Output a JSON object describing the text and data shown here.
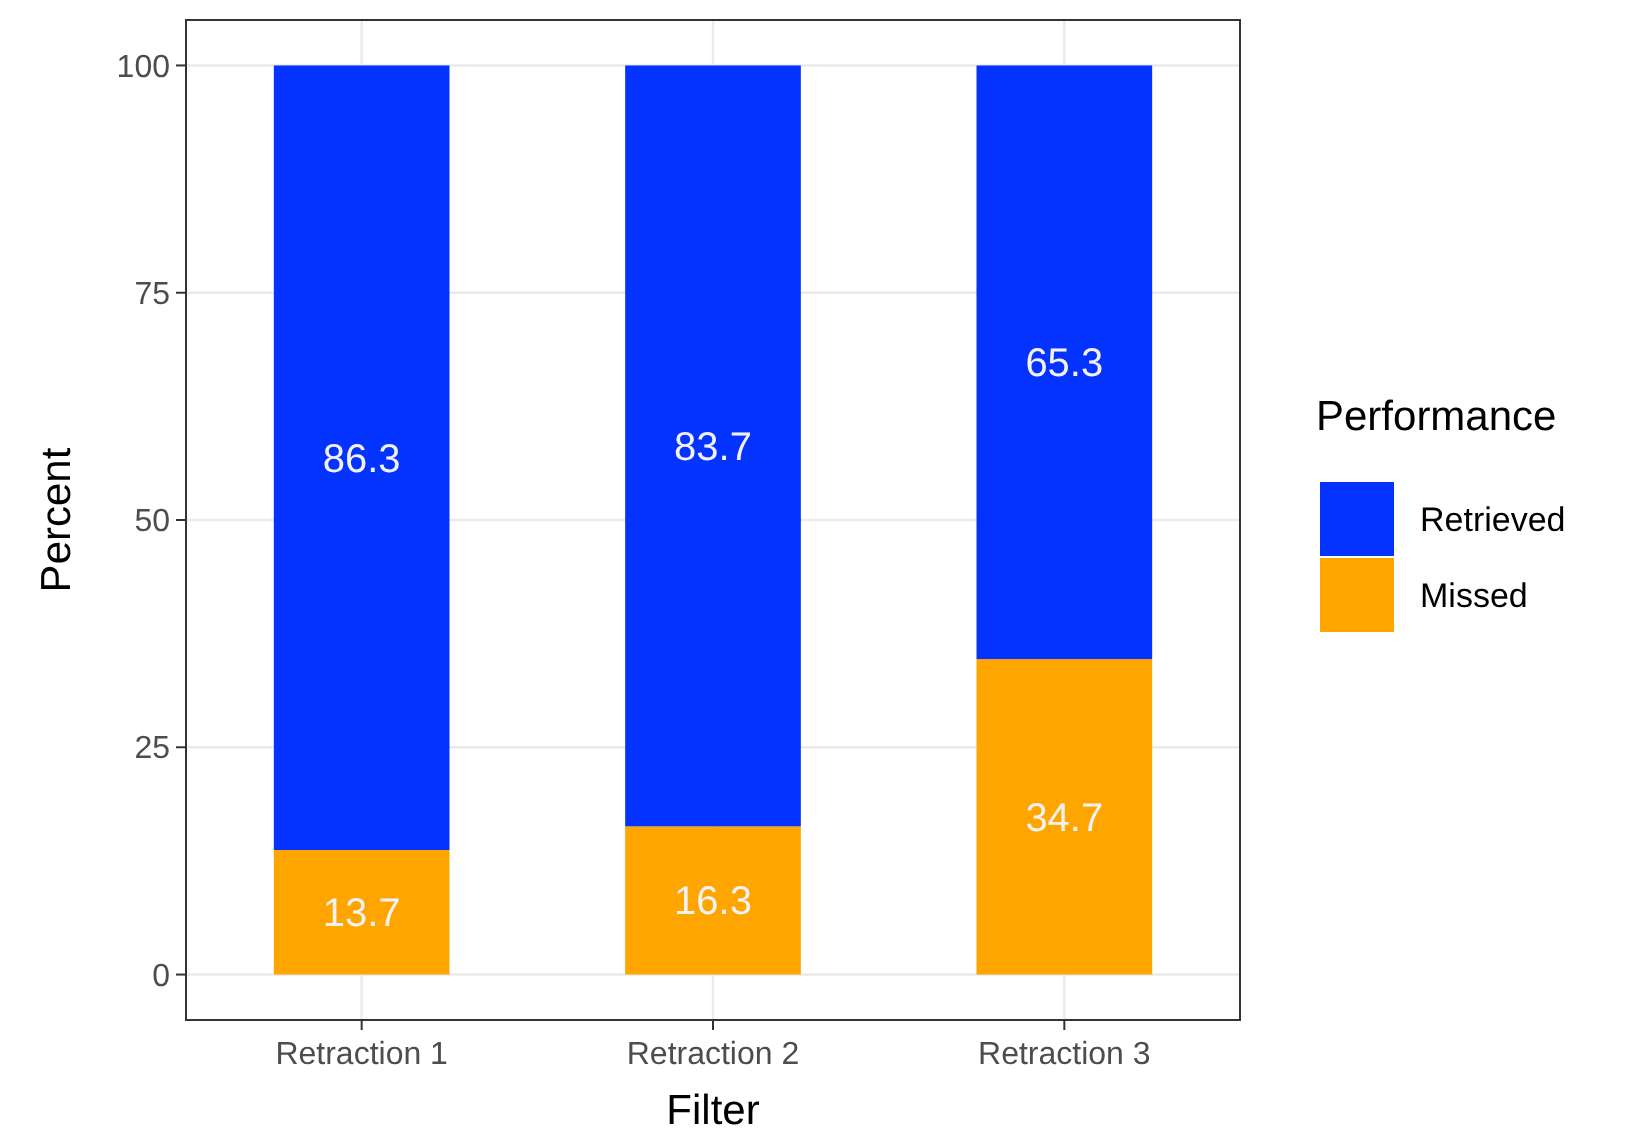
{
  "chart_data": {
    "type": "bar",
    "xlabel": "Filter",
    "ylabel": "Percent",
    "legend_title": "Performance",
    "categories": [
      "Retraction 1",
      "Retraction 2",
      "Retraction 3"
    ],
    "stacked": true,
    "series": [
      {
        "name": "Missed",
        "color": "#ffa500",
        "values": [
          13.7,
          16.3,
          34.7
        ]
      },
      {
        "name": "Retrieved",
        "color": "#0433ff",
        "values": [
          86.3,
          83.7,
          65.3
        ]
      }
    ],
    "ylim": [
      -5,
      105
    ],
    "yticks": [
      0,
      25,
      50,
      75,
      100
    ],
    "grid": true,
    "legend": "right",
    "data_labels": true
  }
}
